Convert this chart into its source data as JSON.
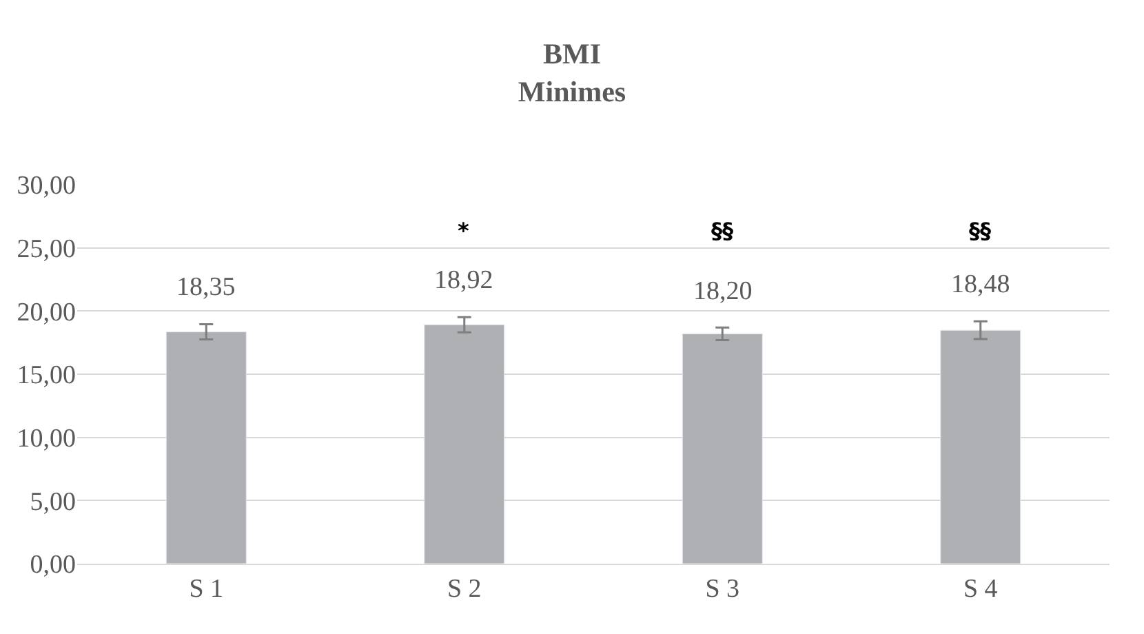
{
  "chart_data": {
    "type": "bar",
    "title": "BMI\nMinimes",
    "categories": [
      "S 1",
      "S 2",
      "S 3",
      "S 4"
    ],
    "values": [
      18.35,
      18.92,
      18.2,
      18.48
    ],
    "value_labels": [
      "18,35",
      "18,92",
      "18,20",
      "18,48"
    ],
    "errors": [
      0.6,
      0.6,
      0.5,
      0.7
    ],
    "color": "#afb0b3",
    "ylim": [
      0,
      30
    ],
    "yticks": [
      {
        "value": 0,
        "label": "0,00"
      },
      {
        "value": 5,
        "label": "5,00"
      },
      {
        "value": 10,
        "label": "10,00"
      },
      {
        "value": 15,
        "label": "15,00"
      },
      {
        "value": 20,
        "label": "20,00"
      },
      {
        "value": 25,
        "label": "25,00"
      },
      {
        "value": 30,
        "label": "30,00"
      }
    ],
    "grid": "y",
    "legend": false,
    "annotations": [
      "*",
      "§§",
      "§§"
    ]
  }
}
